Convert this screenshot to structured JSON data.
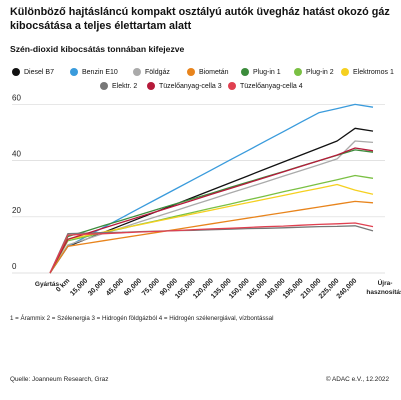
{
  "title": "Különböző hajtásláncú kompakt osztályú autók üvegház hatást okozó gáz kibocsátása a teljes élettartam alatt",
  "subtitle": "Szén-dioxid kibocsátás tonnában kifejezve",
  "footnote": "1 = Árammix   2 = Szélenergia   3 = Hidrogén földgázból   4 = Hidrogén szélenergiával, vízbontással",
  "source": "Quelle: Joanneum Research, Graz",
  "copyright": "© ADAC e.V., 12.2022",
  "chart_data": {
    "type": "line",
    "title": "Különböző hajtásláncú kompakt osztályú autók üvegház hatást okozó gáz kibocsátása a teljes élettartam alatt",
    "subtitle": "Szén-dioxid kibocsátás tonnában kifejezve",
    "x": [
      "Gyártás",
      "0 km",
      "15,000",
      "30,000",
      "45,000",
      "60,000",
      "75,000",
      "90,000",
      "105,000",
      "120,000",
      "135,000",
      "150,000",
      "165,000",
      "180,000",
      "195,000",
      "210,000",
      "225,000",
      "240,000",
      "Újra-hasznosítás"
    ],
    "y_ticks": [
      0,
      20,
      40,
      60
    ],
    "ylim": [
      0,
      63
    ],
    "grid": true,
    "legend": "top",
    "series": [
      {
        "name": "Diesel B7",
        "color": "#111111",
        "values": [
          0,
          9.5,
          12.0,
          14.5,
          17.0,
          19.5,
          22.0,
          24.5,
          27.0,
          29.5,
          32.0,
          34.5,
          37.0,
          39.5,
          42.0,
          44.5,
          47.0,
          51.5,
          50.5
        ]
      },
      {
        "name": "Benzin E10",
        "color": "#3a9bdc",
        "values": [
          0,
          9.5,
          12.9,
          16.3,
          19.7,
          23.1,
          26.5,
          29.9,
          33.3,
          36.7,
          40.1,
          43.5,
          46.9,
          50.3,
          53.7,
          57.1,
          58.5,
          60.0,
          59.0
        ]
      },
      {
        "name": "Földgáz",
        "color": "#aaaaaa",
        "values": [
          0,
          10.0,
          12.0,
          14.1,
          16.1,
          18.2,
          20.2,
          22.2,
          24.3,
          26.3,
          28.4,
          30.4,
          32.4,
          34.5,
          36.5,
          38.5,
          40.6,
          47.0,
          46.5
        ]
      },
      {
        "name": "Biometán",
        "color": "#e8841c",
        "values": [
          0,
          9.5,
          10.5,
          11.5,
          12.5,
          13.5,
          14.5,
          15.5,
          16.5,
          17.5,
          18.5,
          19.5,
          20.5,
          21.5,
          22.5,
          23.5,
          24.5,
          25.5,
          25.0
        ]
      },
      {
        "name": "Plug-in 1",
        "color": "#3c8c3c",
        "values": [
          0,
          13.0,
          14.9,
          16.9,
          18.8,
          20.7,
          22.7,
          24.6,
          26.5,
          28.4,
          30.4,
          32.3,
          34.2,
          36.1,
          38.1,
          40.0,
          41.9,
          43.8,
          43.0
        ]
      },
      {
        "name": "Plug-in 2",
        "color": "#7ac043",
        "values": [
          0,
          11.5,
          12.9,
          14.4,
          15.8,
          17.3,
          18.7,
          20.2,
          21.6,
          23.1,
          24.5,
          26.0,
          27.4,
          28.9,
          30.3,
          31.8,
          33.2,
          34.7,
          33.7
        ]
      },
      {
        "name": "Elektromos 1",
        "color": "#f5d020",
        "values": [
          0,
          12.0,
          13.3,
          14.6,
          15.9,
          17.2,
          18.5,
          19.8,
          21.1,
          22.4,
          23.7,
          25.0,
          26.3,
          27.6,
          28.9,
          30.2,
          31.5,
          29.5,
          28.0
        ]
      },
      {
        "name": "Elektr. 2",
        "color": "#777777",
        "values": [
          0,
          14.0,
          14.2,
          14.4,
          14.5,
          14.7,
          14.9,
          15.1,
          15.2,
          15.4,
          15.6,
          15.8,
          15.9,
          16.1,
          16.3,
          16.5,
          16.6,
          16.8,
          15.0
        ]
      },
      {
        "name": "Tüzelőanyag-cella 3",
        "color": "#b51a3a",
        "values": [
          0,
          12.0,
          14.0,
          16.0,
          18.0,
          20.0,
          22.0,
          24.0,
          26.0,
          28.0,
          30.0,
          32.0,
          34.0,
          36.0,
          38.0,
          40.0,
          42.0,
          44.5,
          43.5
        ]
      },
      {
        "name": "Tüzelőanyag-cella 4",
        "color": "#e04050",
        "values": [
          0,
          13.5,
          13.8,
          14.0,
          14.3,
          14.6,
          14.8,
          15.1,
          15.4,
          15.7,
          15.9,
          16.2,
          16.5,
          16.7,
          17.0,
          17.3,
          17.5,
          17.8,
          16.5
        ]
      }
    ]
  }
}
